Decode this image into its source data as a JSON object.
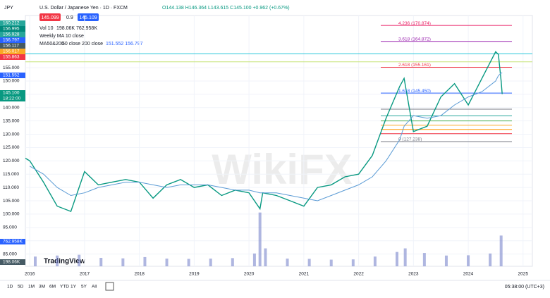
{
  "header": {
    "symbol": "JPY",
    "ohlc": "O144.138 H146.364 L143.615 C145.100 +0.962 (+0.67%)",
    "bid": "145.099",
    "spread": "0.9",
    "ask": "145.109",
    "vol": "Vol 10",
    "vol_values": "198.06K 762.958K",
    "weekly_ma": "Weekly MA 10 close",
    "ma_params": "50 close 200 close",
    "ma_values": "151.552 156.797"
  },
  "scale_labels": [
    {
      "label": "160.212",
      "color": "#26a69a"
    },
    {
      "label": "156.995",
      "color": "#00897b"
    },
    {
      "label": "156.928",
      "color": "#26a69a"
    },
    {
      "label": "156.797",
      "color": "#2962ff"
    },
    {
      "label": "156.117",
      "color": "#455a64"
    },
    {
      "label": "156.017",
      "color": "#f9a825"
    },
    {
      "label": "155.863",
      "color": "#f23645"
    },
    {
      "label": "151.552",
      "color": "#2962ff"
    },
    {
      "label": "145.100",
      "color": "#089981"
    },
    {
      "label": "18:22:00",
      "color": "#089981"
    },
    {
      "label": "762.958K",
      "color": "#2962ff"
    },
    {
      "label": "198.06K",
      "color": "#455a64"
    }
  ],
  "watermark": "WikiFX",
  "logo": "TradingView",
  "toolbar": {
    "ranges": [
      "1D",
      "5D",
      "1M",
      "3M",
      "6M",
      "YTD",
      "1Y",
      "5Y",
      "All"
    ],
    "clock": "05:38:00 (UTC+3)"
  },
  "chart_data": {
    "type": "line",
    "x": [
      2015.92,
      2016.0,
      2016.25,
      2016.5,
      2016.75,
      2017.0,
      2017.25,
      2017.5,
      2017.75,
      2018.0,
      2018.25,
      2018.5,
      2018.75,
      2019.0,
      2019.25,
      2019.5,
      2019.75,
      2020.0,
      2020.2,
      2020.25,
      2020.5,
      2020.75,
      2021.0,
      2021.25,
      2021.5,
      2021.75,
      2022.0,
      2022.25,
      2022.5,
      2022.75,
      2022.83,
      2023.0,
      2023.25,
      2023.5,
      2023.75,
      2024.0,
      2024.25,
      2024.5,
      2024.55,
      2024.6,
      2024.62
    ],
    "series": [
      {
        "name": "U.S. Dollar / Japanese Yen · 1D · FXCM",
        "color": "#089981",
        "values": [
          121,
          120,
          112,
          103,
          101,
          116,
          111,
          112,
          113,
          112,
          106,
          111,
          113,
          110,
          111,
          107,
          109,
          108,
          102,
          108,
          107,
          105,
          103,
          110,
          111,
          114,
          115,
          122,
          136,
          148,
          151,
          131,
          133,
          144,
          149,
          141,
          151,
          161,
          160,
          150,
          145.1
        ]
      },
      {
        "name": "MA50&200",
        "color": "#5b9bd5",
        "values": [
          null,
          118,
          115,
          110,
          107,
          108,
          110,
          111,
          112,
          112,
          111,
          110,
          111,
          111,
          111,
          110,
          109,
          109,
          108,
          108,
          108,
          107,
          106,
          105,
          107,
          109,
          111,
          114,
          120,
          128,
          133,
          137,
          136,
          137,
          141,
          144,
          146,
          150,
          152,
          153,
          153
        ]
      }
    ],
    "ylim": [
      80.4,
      174.6
    ],
    "xlim": [
      2015.92,
      2025.17
    ],
    "yticks": [
      {
        "value": 85,
        "label": "85.000"
      },
      {
        "value": 90,
        "label": "90.000"
      },
      {
        "value": 95,
        "label": "95.000"
      },
      {
        "value": 100,
        "label": "100.000"
      },
      {
        "value": 105,
        "label": "105.000"
      },
      {
        "value": 110,
        "label": "110.000"
      },
      {
        "value": 115,
        "label": "115.000"
      },
      {
        "value": 120,
        "label": "120.000"
      },
      {
        "value": 125,
        "label": "125.000"
      },
      {
        "value": 130,
        "label": "130.000"
      },
      {
        "value": 135,
        "label": "135.000"
      },
      {
        "value": 140,
        "label": "140.000"
      },
      {
        "value": 145,
        "label": "145.000"
      },
      {
        "value": 150,
        "label": "150.000"
      },
      {
        "value": 155,
        "label": "155.000"
      }
    ],
    "xticks": [
      2016,
      2017,
      2018,
      2019,
      2020,
      2021,
      2022,
      2023,
      2024,
      2025
    ],
    "fib_levels": [
      {
        "value": 170.874,
        "label": "4.236 (170.874)",
        "color": "#e91e63"
      },
      {
        "value": 164.872,
        "label": "3.618 (164.872)",
        "color": "#9c27b0"
      },
      {
        "value": 155.161,
        "label": "2.618 (155.161)",
        "color": "#f23645"
      },
      {
        "value": 145.45,
        "label": "1.618 (145.450)",
        "color": "#2962ff"
      },
      {
        "value": 127.238,
        "label": "0 (127.238)",
        "color": "#787b86"
      }
    ],
    "fib_lines": [
      {
        "value": 139.4,
        "color": "#787b86"
      },
      {
        "value": 136.9,
        "color": "#26a69a"
      },
      {
        "value": 135,
        "color": "#4caf50"
      },
      {
        "value": 133.4,
        "color": "#f9a825"
      },
      {
        "value": 131.8,
        "color": "#ff9800"
      },
      {
        "value": 130.2,
        "color": "#f23645"
      }
    ],
    "hlines": [
      {
        "value": 160.212,
        "color": "#26c6da"
      },
      {
        "value": 157.2,
        "color": "#c6e377"
      }
    ],
    "volume": {
      "color": "#7986cb",
      "vlim": [
        0,
        2200
      ],
      "x": [
        2016.1,
        2016.5,
        2016.9,
        2017.3,
        2017.7,
        2018.1,
        2018.5,
        2018.9,
        2019.3,
        2019.7,
        2020.1,
        2020.2,
        2020.3,
        2020.7,
        2021.1,
        2021.5,
        2021.9,
        2022.3,
        2022.7,
        2022.85,
        2023.2,
        2023.6,
        2024.0,
        2024.4,
        2024.6
      ],
      "values": [
        380,
        420,
        450,
        330,
        310,
        360,
        300,
        290,
        300,
        320,
        500,
        2100,
        700,
        300,
        290,
        260,
        270,
        380,
        560,
        700,
        520,
        420,
        430,
        500,
        1200
      ]
    }
  }
}
